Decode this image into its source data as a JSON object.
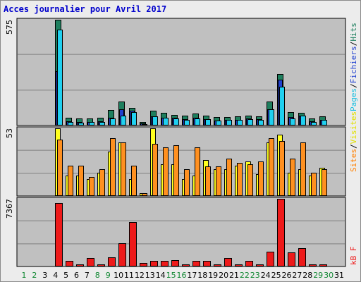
{
  "title": "Acces journalier pour Avril 2017",
  "colors": {
    "frame": "#ececec",
    "plot_bg": "#c0c0c0",
    "hits": "#1e7f5e",
    "files": "#2040d0",
    "pages": "#20d0f0",
    "visits": "#ffff20",
    "sites": "#ff9020",
    "kbytes": "#ee1a1a",
    "weekday_label": "#000000",
    "weekend_label": "#118833",
    "legend_hits": "#1e7f5e",
    "legend_files": "#2040d0",
    "legend_pages": "#20c0e0",
    "legend_visits": "#e0e000",
    "legend_sites": "#ff8000",
    "legend_kb": "#ee1a1a",
    "legend_sep": "#000000"
  },
  "chart_data": [
    {
      "type": "bar",
      "panel": "hits-files-pages",
      "ymax_label": "575",
      "ylim": [
        0,
        575
      ],
      "legend": [
        "Pages",
        "Fichiers",
        "Hits"
      ],
      "categories": [
        "1",
        "2",
        "3",
        "4",
        "5",
        "6",
        "7",
        "8",
        "9",
        "10",
        "11",
        "12",
        "13",
        "14",
        "15",
        "16",
        "17",
        "18",
        "19",
        "20",
        "21",
        "22",
        "23",
        "24",
        "25",
        "26",
        "27",
        "28",
        "29",
        "30",
        "31"
      ],
      "series": [
        {
          "name": "Hits",
          "values": [
            0,
            0,
            0,
            0,
            575,
            42,
            38,
            38,
            42,
            85,
            130,
            95,
            18,
            80,
            70,
            58,
            52,
            65,
            55,
            45,
            45,
            48,
            55,
            50,
            130,
            280,
            72,
            70,
            40,
            48,
            0
          ]
        },
        {
          "name": "Fichiers",
          "values": [
            0,
            0,
            0,
            0,
            295,
            22,
            18,
            20,
            22,
            42,
            88,
            82,
            10,
            48,
            42,
            42,
            35,
            42,
            35,
            28,
            30,
            30,
            38,
            35,
            90,
            250,
            45,
            55,
            22,
            32,
            0
          ]
        },
        {
          "name": "Pages",
          "values": [
            0,
            0,
            0,
            0,
            520,
            20,
            16,
            18,
            20,
            40,
            55,
            72,
            8,
            48,
            42,
            40,
            32,
            40,
            35,
            28,
            30,
            30,
            35,
            30,
            88,
            210,
            40,
            52,
            20,
            30,
            0
          ]
        }
      ]
    },
    {
      "type": "bar",
      "panel": "visits-sites",
      "ymax_label": "53",
      "ylim": [
        0,
        53
      ],
      "legend": [
        "Sites",
        "Visites"
      ],
      "categories": [
        "1",
        "2",
        "3",
        "4",
        "5",
        "6",
        "7",
        "8",
        "9",
        "10",
        "11",
        "12",
        "13",
        "14",
        "15",
        "16",
        "17",
        "18",
        "19",
        "20",
        "21",
        "22",
        "23",
        "24",
        "25",
        "26",
        "27",
        "28",
        "29",
        "30",
        "31"
      ],
      "series": [
        {
          "name": "Visites",
          "values": [
            0,
            0,
            0,
            0,
            53,
            16,
            16,
            13,
            18,
            35,
            42,
            13,
            2,
            53,
            25,
            25,
            13,
            16,
            28,
            21,
            21,
            24,
            27,
            17,
            42,
            48,
            18,
            21,
            16,
            22,
            0
          ]
        },
        {
          "name": "Sites",
          "values": [
            0,
            0,
            0,
            0,
            44,
            24,
            24,
            15,
            21,
            45,
            42,
            24,
            2,
            41,
            38,
            40,
            21,
            38,
            23,
            23,
            29,
            26,
            25,
            27,
            45,
            43,
            29,
            42,
            18,
            21,
            0
          ]
        }
      ]
    },
    {
      "type": "bar",
      "panel": "kbytes",
      "ymax_label": "7367",
      "ylim": [
        0,
        7367
      ],
      "legend": [
        "kB F"
      ],
      "categories": [
        "1",
        "2",
        "3",
        "4",
        "5",
        "6",
        "7",
        "8",
        "9",
        "10",
        "11",
        "12",
        "13",
        "14",
        "15",
        "16",
        "17",
        "18",
        "19",
        "20",
        "21",
        "22",
        "23",
        "24",
        "25",
        "26",
        "27",
        "28",
        "29",
        "30",
        "31"
      ],
      "series": [
        {
          "name": "kB F",
          "values": [
            0,
            0,
            0,
            0,
            6900,
            600,
            200,
            950,
            200,
            1000,
            2500,
            4800,
            350,
            600,
            600,
            700,
            200,
            600,
            600,
            200,
            900,
            200,
            600,
            200,
            1600,
            7367,
            1500,
            2000,
            200,
            200,
            0
          ]
        }
      ]
    }
  ],
  "days": [
    "1",
    "2",
    "3",
    "4",
    "5",
    "6",
    "7",
    "8",
    "9",
    "10",
    "11",
    "12",
    "13",
    "14",
    "15",
    "16",
    "17",
    "18",
    "19",
    "20",
    "21",
    "22",
    "23",
    "24",
    "25",
    "26",
    "27",
    "28",
    "29",
    "30",
    "31"
  ],
  "weekend_days": [
    "1",
    "2",
    "8",
    "9",
    "15",
    "16",
    "22",
    "23",
    "29",
    "30"
  ]
}
